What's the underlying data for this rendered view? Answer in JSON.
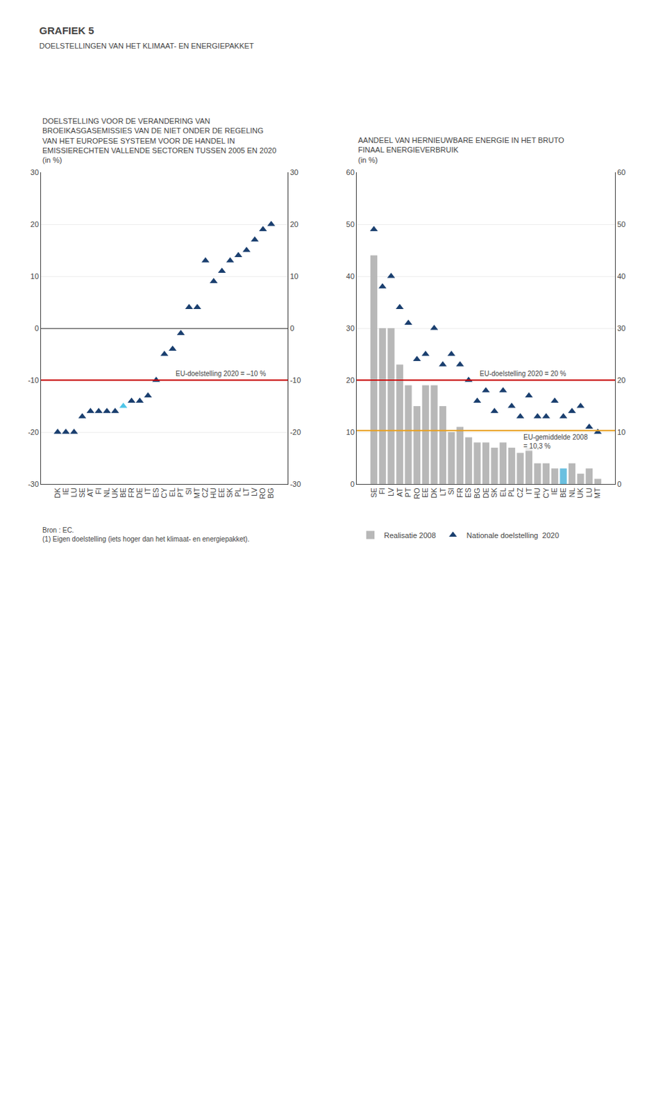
{
  "title": "GRAFIEK 5",
  "subtitle": "DOELSTELLINGEN VAN HET KLIMAAT- EN ENERGIEPAKKET",
  "annotations": [
    "Bron : EC.",
    "(1) Eigen doelstelling (iets hoger dan het klimaat- en energiepakket)."
  ],
  "chart_data": [
    {
      "type": "scatter",
      "title": "DOELSTELLING VOOR DE VERANDERING VAN\nBROEIKASGASEMISSIES VAN DE NIET ONDER DE REGELING\nVAN HET EUROPESE SYSTEEM VOOR DE HANDEL IN\nEMISSIERECHTEN VALLENDE SECTOREN TUSSEN 2005 EN 2020\n(in %)",
      "categories": [
        "DK",
        "IE",
        "LU",
        "SE",
        "AT",
        "FI",
        "NL",
        "UK",
        "BE",
        "FR",
        "DE",
        "IT",
        "ES",
        "CY",
        "EL",
        "PT",
        "SI",
        "MT",
        "CZ",
        "HU",
        "EE",
        "SK",
        "PL",
        "LT",
        "LV",
        "RO",
        "BG"
      ],
      "values": [
        -20,
        -20,
        -20,
        -17,
        -16,
        -16,
        -16,
        -16,
        -15,
        -14,
        -14,
        -13,
        -10,
        -5,
        -4,
        -1,
        4,
        4,
        13,
        9,
        11,
        13,
        14,
        15,
        17,
        19,
        20
      ],
      "colors": [
        "#1a3f6f",
        "#1a3f6f",
        "#1a3f6f",
        "#1a3f6f",
        "#1a3f6f",
        "#1a3f6f",
        "#1a3f6f",
        "#1a3f6f",
        "#4ec6e8",
        "#1a3f6f",
        "#1a3f6f",
        "#1a3f6f",
        "#1a3f6f",
        "#1a3f6f",
        "#1a3f6f",
        "#1a3f6f",
        "#1a3f6f",
        "#1a3f6f",
        "#1a3f6f",
        "#1a3f6f",
        "#1a3f6f",
        "#1a3f6f",
        "#1a3f6f",
        "#1a3f6f",
        "#1a3f6f",
        "#1a3f6f",
        "#1a3f6f"
      ],
      "marker": "triangle",
      "ylim": [
        -30,
        30
      ],
      "yticks": [
        -30,
        -20,
        -10,
        0,
        10,
        20,
        30
      ],
      "grid": true,
      "annotations": [
        {
          "text": "EU-doelstelling 2020 = –10 %",
          "y": -10,
          "color": "#cc0000"
        }
      ]
    },
    {
      "type": "bar",
      "title": "AANDEEL VAN HERNIEUWBARE ENERGIE IN HET BRUTO\nFINAAL ENERGIEVERBRUIK\n(in %)",
      "categories": [
        "SE",
        "FI",
        "LV",
        "AT",
        "PT",
        "RO",
        "EE",
        "DK",
        "LT",
        "SI",
        "FR",
        "ES",
        "BG",
        "DE",
        "SK",
        "EL",
        "PL",
        "CZ",
        "IT",
        "HU",
        "CY",
        "IE",
        "BE",
        "NL",
        "UK",
        "LU",
        "MT"
      ],
      "series": [
        {
          "name": "Realisatie 2008",
          "type": "bar",
          "colors": [
            "#b8b8b8",
            "#b8b8b8",
            "#b8b8b8",
            "#b8b8b8",
            "#b8b8b8",
            "#b8b8b8",
            "#b8b8b8",
            "#b8b8b8",
            "#b8b8b8",
            "#b8b8b8",
            "#b8b8b8",
            "#b8b8b8",
            "#b8b8b8",
            "#b8b8b8",
            "#b8b8b8",
            "#b8b8b8",
            "#b8b8b8",
            "#b8b8b8",
            "#b8b8b8",
            "#b8b8b8",
            "#b8b8b8",
            "#b8b8b8",
            "#6ac0e0",
            "#b8b8b8",
            "#b8b8b8",
            "#b8b8b8",
            "#b8b8b8"
          ],
          "values": [
            44,
            30,
            30,
            23,
            19,
            15,
            19,
            19,
            15,
            10,
            11,
            9,
            8,
            8,
            7,
            8,
            7,
            6,
            7,
            4,
            4,
            3,
            3,
            4,
            2,
            3,
            1
          ]
        },
        {
          "name": "Nationale doelstelling  2020",
          "type": "scatter",
          "marker": "triangle",
          "color": "#1a3f6f",
          "values": [
            49,
            38,
            40,
            34,
            31,
            24,
            25,
            30,
            23,
            25,
            23,
            20,
            16,
            18,
            14,
            18,
            15,
            13,
            17,
            13,
            13,
            16,
            13,
            14,
            15,
            11,
            10
          ]
        }
      ],
      "ylim": [
        0,
        60
      ],
      "yticks": [
        0,
        10,
        20,
        30,
        40,
        50,
        60
      ],
      "grid": true,
      "legend": "bottom",
      "annotations": [
        {
          "text": "EU-doelstelling 2020 = 20 %",
          "y": 20,
          "color": "#cc0000"
        },
        {
          "text": "EU-gemiddelde 2008\n= 10,3 %",
          "y": 10.3,
          "color": "#e8a020"
        }
      ]
    }
  ]
}
